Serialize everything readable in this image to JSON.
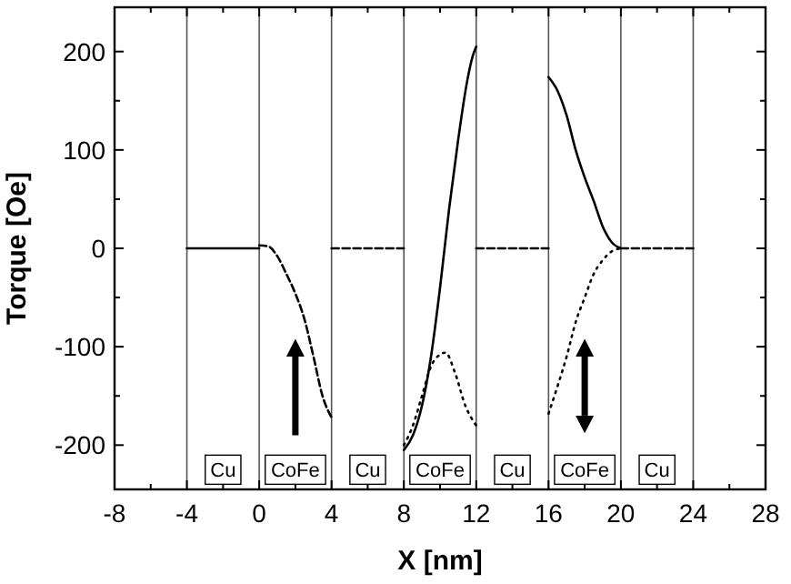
{
  "chart_data": {
    "type": "line",
    "xlabel": "X [nm]",
    "ylabel": "Torque [Oe]",
    "xlim": [
      -8,
      28
    ],
    "ylim": [
      -245,
      245
    ],
    "xticks": [
      -8,
      {
        "value": -6,
        "label": null
      },
      -4,
      {
        "value": -2,
        "label": null
      },
      0,
      {
        "value": 2,
        "label": null
      },
      4,
      {
        "value": 6,
        "label": null
      },
      8,
      {
        "value": 10,
        "label": null
      },
      12,
      {
        "value": 14,
        "label": null
      },
      16,
      {
        "value": 18,
        "label": null
      },
      20,
      {
        "value": 22,
        "label": null
      },
      24,
      {
        "value": 26,
        "label": null
      },
      28
    ],
    "yticks": [
      -200,
      {
        "value": -150,
        "label": null
      },
      -100,
      {
        "value": -50,
        "label": null
      },
      0,
      {
        "value": 50,
        "label": null
      },
      100,
      {
        "value": 150,
        "label": null
      },
      200
    ],
    "grid": false,
    "marker": "none",
    "series": [
      {
        "color": "#000000",
        "line_style": "solid",
        "x": [
          -4,
          -2,
          0
        ],
        "values": [
          0,
          0,
          0
        ]
      },
      {
        "color": "#000000",
        "line_style": "dashed",
        "x": [
          0,
          0.5,
          1,
          1.5,
          2,
          2.5,
          3,
          3.5,
          4
        ],
        "values": [
          3,
          2,
          -8,
          -26,
          -46,
          -72,
          -110,
          -150,
          -172
        ]
      },
      {
        "color": "#000000",
        "line_style": "dashed",
        "x": [
          4,
          8
        ],
        "values": [
          0,
          0
        ]
      },
      {
        "color": "#000000",
        "line_style": "solid",
        "x": [
          8,
          8.5,
          9,
          9.5,
          10,
          10.5,
          11,
          11.5,
          11.8,
          12
        ],
        "values": [
          -205,
          -190,
          -160,
          -110,
          -40,
          40,
          110,
          170,
          195,
          205
        ]
      },
      {
        "color": "#000000",
        "line_style": "dotted",
        "x": [
          8,
          8.5,
          9,
          9.5,
          10,
          10.3,
          10.8,
          11.4,
          12
        ],
        "values": [
          -200,
          -180,
          -150,
          -120,
          -108,
          -106,
          -125,
          -160,
          -180
        ]
      },
      {
        "color": "#000000",
        "line_style": "dashed",
        "x": [
          12,
          16
        ],
        "values": [
          0,
          0
        ]
      },
      {
        "color": "#000000",
        "line_style": "solid",
        "x": [
          16,
          16.5,
          17,
          17.5,
          18,
          18.5,
          19,
          19.5,
          20
        ],
        "values": [
          174,
          160,
          135,
          100,
          72,
          48,
          22,
          6,
          0
        ]
      },
      {
        "color": "#000000",
        "line_style": "dotted",
        "x": [
          16,
          16.5,
          17,
          17.5,
          18,
          18.5,
          19,
          19.5,
          20
        ],
        "values": [
          -168,
          -140,
          -110,
          -75,
          -50,
          -26,
          -12,
          -3,
          0
        ]
      },
      {
        "color": "#000000",
        "line_style": "dashed",
        "x": [
          20,
          24
        ],
        "values": [
          0,
          0
        ]
      }
    ],
    "ref_lines": [
      {
        "axis": "x",
        "value": -4
      },
      {
        "axis": "x",
        "value": 0
      },
      {
        "axis": "x",
        "value": 4
      },
      {
        "axis": "x",
        "value": 8
      },
      {
        "axis": "x",
        "value": 12
      },
      {
        "axis": "x",
        "value": 16
      },
      {
        "axis": "x",
        "value": 20
      },
      {
        "axis": "x",
        "value": 24
      }
    ],
    "annotations": [
      {
        "text": "Cu",
        "x": -2,
        "y": -225
      },
      {
        "text": "CoFe",
        "x": 2,
        "y": -225
      },
      {
        "text": "Cu",
        "x": 6,
        "y": -225
      },
      {
        "text": "CoFe",
        "x": 10,
        "y": -225
      },
      {
        "text": "Cu",
        "x": 14,
        "y": -225
      },
      {
        "text": "CoFe",
        "x": 18,
        "y": -225
      },
      {
        "text": "Cu",
        "x": 22,
        "y": -225
      }
    ]
  }
}
